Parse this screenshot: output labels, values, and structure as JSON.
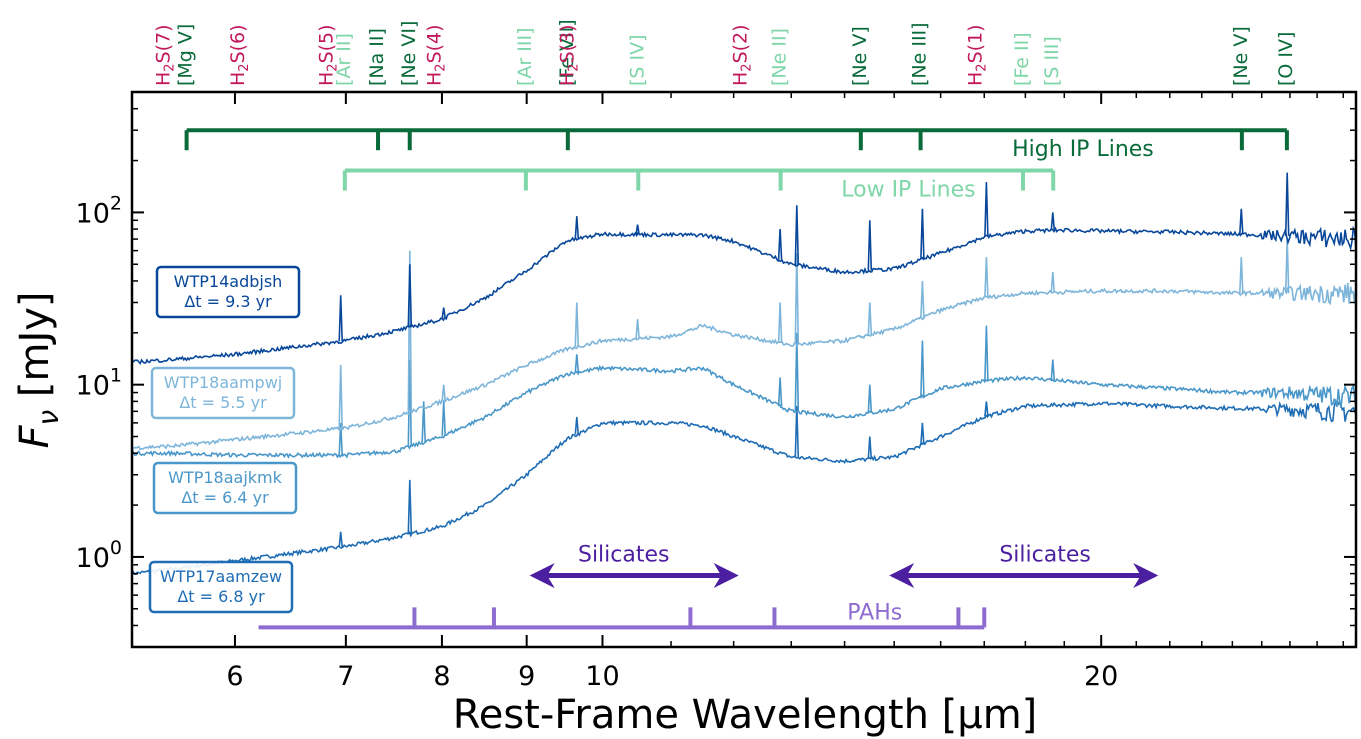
{
  "chart_data": {
    "type": "line",
    "title": "",
    "xlabel": "Rest-Frame Wavelength [μm]",
    "ylabel": "F_ν [mJy]",
    "xscale": "log",
    "yscale": "log",
    "xlim": [
      5.2,
      28.5
    ],
    "ylim": [
      0.3,
      500
    ],
    "x_ticks": [
      6,
      7,
      8,
      9,
      10,
      20
    ],
    "y_ticks": [
      {
        "value": 1,
        "base": "10",
        "exp": "0"
      },
      {
        "value": 10,
        "base": "10",
        "exp": "1"
      },
      {
        "value": 100,
        "base": "10",
        "exp": "2"
      }
    ],
    "series": [
      {
        "name": "WTP14adbjsh",
        "label_line2": "Δt = 9.3 yr",
        "color": "#08479a",
        "points": [
          [
            5.2,
            13.5
          ],
          [
            5.5,
            14.0
          ],
          [
            6.0,
            15.0
          ],
          [
            6.5,
            16.5
          ],
          [
            7.0,
            18.0
          ],
          [
            7.5,
            20.5
          ],
          [
            8.0,
            24.0
          ],
          [
            8.5,
            32.0
          ],
          [
            9.0,
            46.0
          ],
          [
            9.5,
            68.0
          ],
          [
            10.0,
            75.0
          ],
          [
            11.0,
            74.0
          ],
          [
            11.5,
            74.0
          ],
          [
            12.0,
            68.0
          ],
          [
            13.0,
            50.0
          ],
          [
            14.0,
            45.0
          ],
          [
            15.0,
            47.0
          ],
          [
            16.0,
            58.0
          ],
          [
            17.0,
            72.0
          ],
          [
            18.0,
            78.0
          ],
          [
            19.0,
            79.0
          ],
          [
            20.0,
            78.0
          ],
          [
            22.0,
            77.0
          ],
          [
            24.0,
            75.0
          ],
          [
            26.0,
            73.0
          ],
          [
            28.5,
            70.0
          ]
        ],
        "peaks": [
          [
            6.95,
            33
          ],
          [
            7.65,
            50
          ],
          [
            8.02,
            28
          ],
          [
            9.65,
            95
          ],
          [
            10.5,
            85
          ],
          [
            12.8,
            80
          ],
          [
            13.1,
            110
          ],
          [
            14.5,
            90
          ],
          [
            15.6,
            105
          ],
          [
            17.05,
            150
          ],
          [
            18.7,
            100
          ],
          [
            24.3,
            105
          ],
          [
            25.9,
            170
          ]
        ]
      },
      {
        "name": "WTP18aampwj",
        "label_line2": "Δt = 5.5 yr",
        "color": "#7eb5da",
        "points": [
          [
            5.2,
            4.3
          ],
          [
            5.5,
            4.4
          ],
          [
            6.0,
            4.8
          ],
          [
            6.5,
            5.2
          ],
          [
            7.0,
            5.6
          ],
          [
            7.5,
            6.5
          ],
          [
            8.0,
            8.0
          ],
          [
            8.5,
            10.0
          ],
          [
            9.0,
            13.0
          ],
          [
            9.5,
            16.0
          ],
          [
            10.0,
            18.0
          ],
          [
            11.0,
            19.0
          ],
          [
            11.5,
            22.0
          ],
          [
            12.0,
            19.5
          ],
          [
            13.0,
            17.0
          ],
          [
            14.0,
            18.0
          ],
          [
            15.0,
            21.0
          ],
          [
            16.0,
            27.0
          ],
          [
            17.0,
            32.0
          ],
          [
            18.0,
            34.0
          ],
          [
            20.0,
            35.0
          ],
          [
            22.0,
            35.0
          ],
          [
            24.0,
            34.0
          ],
          [
            26.0,
            34.0
          ],
          [
            28.5,
            34.0
          ]
        ],
        "peaks": [
          [
            6.95,
            13
          ],
          [
            7.65,
            60
          ],
          [
            8.02,
            10
          ],
          [
            9.65,
            30
          ],
          [
            10.5,
            24
          ],
          [
            12.8,
            30
          ],
          [
            13.1,
            58
          ],
          [
            14.5,
            30
          ],
          [
            15.6,
            40
          ],
          [
            17.05,
            55
          ],
          [
            18.7,
            45
          ],
          [
            24.3,
            55
          ],
          [
            25.9,
            70
          ]
        ]
      },
      {
        "name": "WTP18aajkmk",
        "label_line2": "Δt = 6.4 yr",
        "color": "#4a97c9",
        "points": [
          [
            5.2,
            4.0
          ],
          [
            5.5,
            4.0
          ],
          [
            6.0,
            3.9
          ],
          [
            6.5,
            3.9
          ],
          [
            7.0,
            3.9
          ],
          [
            7.5,
            4.1
          ],
          [
            8.0,
            5.0
          ],
          [
            8.5,
            6.5
          ],
          [
            9.0,
            9.0
          ],
          [
            9.5,
            11.5
          ],
          [
            10.0,
            12.5
          ],
          [
            11.0,
            12.0
          ],
          [
            11.5,
            12.5
          ],
          [
            12.0,
            10.0
          ],
          [
            13.0,
            7.0
          ],
          [
            14.0,
            6.5
          ],
          [
            15.0,
            7.2
          ],
          [
            16.0,
            9.5
          ],
          [
            17.0,
            10.5
          ],
          [
            18.0,
            11.0
          ],
          [
            20.0,
            10.0
          ],
          [
            22.0,
            9.5
          ],
          [
            24.0,
            9.0
          ],
          [
            26.0,
            9.0
          ],
          [
            28.5,
            8.5
          ]
        ],
        "peaks": [
          [
            6.95,
            6
          ],
          [
            7.65,
            14
          ],
          [
            7.8,
            8
          ],
          [
            8.02,
            8
          ],
          [
            9.65,
            15
          ],
          [
            12.8,
            11
          ],
          [
            13.1,
            20
          ],
          [
            14.5,
            10
          ],
          [
            15.6,
            18
          ],
          [
            17.05,
            22
          ],
          [
            18.7,
            14
          ]
        ]
      },
      {
        "name": "WTP17aamzew",
        "label_line2": "Δt = 6.8 yr",
        "color": "#1f6db5",
        "points": [
          [
            5.2,
            0.8
          ],
          [
            5.5,
            0.85
          ],
          [
            6.0,
            0.95
          ],
          [
            6.5,
            1.05
          ],
          [
            7.0,
            1.15
          ],
          [
            7.5,
            1.3
          ],
          [
            8.0,
            1.5
          ],
          [
            8.5,
            2.0
          ],
          [
            9.0,
            3.0
          ],
          [
            9.5,
            4.8
          ],
          [
            10.0,
            6.0
          ],
          [
            11.0,
            6.0
          ],
          [
            11.5,
            5.8
          ],
          [
            12.0,
            5.0
          ],
          [
            13.0,
            3.8
          ],
          [
            14.0,
            3.6
          ],
          [
            15.0,
            3.8
          ],
          [
            16.0,
            5.0
          ],
          [
            17.0,
            6.5
          ],
          [
            18.0,
            7.5
          ],
          [
            20.0,
            7.8
          ],
          [
            22.0,
            7.5
          ],
          [
            24.0,
            7.3
          ],
          [
            26.0,
            7.2
          ],
          [
            28.5,
            7.0
          ]
        ],
        "peaks": [
          [
            6.95,
            1.4
          ],
          [
            7.65,
            2.8
          ],
          [
            9.65,
            6.5
          ],
          [
            13.1,
            7.5
          ],
          [
            14.5,
            5
          ],
          [
            15.6,
            6
          ],
          [
            17.05,
            8
          ]
        ]
      }
    ],
    "line_ids": [
      {
        "text_main": "H",
        "sub": "2",
        "text_rest": "S(7)",
        "x": 5.51,
        "color": "#c2185b",
        "row": 0
      },
      {
        "text": "[Mg V]",
        "x": 5.61,
        "color": "#0a6b3a",
        "row": 1
      },
      {
        "text_main": "H",
        "sub": "2",
        "text_rest": "S(6)",
        "x": 6.11,
        "color": "#c2185b",
        "row": 0
      },
      {
        "text_main": "H",
        "sub": "2",
        "text_rest": "S(5)",
        "x": 6.91,
        "color": "#c2185b",
        "row": 0
      },
      {
        "text": "[Ar II]",
        "x": 6.99,
        "color": "#7fd6a8",
        "row": 1
      },
      {
        "text": "[Na II]",
        "x": 7.32,
        "color": "#0a6b3a",
        "row": 1
      },
      {
        "text": "[Ne VI]",
        "x": 7.65,
        "color": "#0a6b3a",
        "row": 1
      },
      {
        "text_main": "H",
        "sub": "2",
        "text_rest": "S(4)",
        "x": 8.03,
        "color": "#c2185b",
        "row": 0
      },
      {
        "text": "[Ar III]",
        "x": 8.99,
        "color": "#7fd6a8",
        "row": 1
      },
      {
        "text": "[Fe VII]",
        "x": 9.53,
        "color": "#0a6b3a",
        "row": 1
      },
      {
        "text_main": "H",
        "sub": "2",
        "text_rest": "S(3)",
        "x": 9.66,
        "color": "#c2185b",
        "row": 0
      },
      {
        "text": "[S IV]",
        "x": 10.51,
        "color": "#7fd6a8",
        "row": 1
      },
      {
        "text_main": "H",
        "sub": "2",
        "text_rest": "S(2)",
        "x": 12.28,
        "color": "#c2185b",
        "row": 0
      },
      {
        "text": "[Ne II]",
        "x": 12.81,
        "color": "#7fd6a8",
        "row": 1
      },
      {
        "text": "[Ne V]",
        "x": 14.32,
        "color": "#0a6b3a",
        "row": 1
      },
      {
        "text": "[Ne III]",
        "x": 15.56,
        "color": "#0a6b3a",
        "row": 1
      },
      {
        "text_main": "H",
        "sub": "2",
        "text_rest": "S(1)",
        "x": 17.03,
        "color": "#c2185b",
        "row": 0
      },
      {
        "text": "[Fe II]",
        "x": 17.94,
        "color": "#7fd6a8",
        "row": 1
      },
      {
        "text": "[S III]",
        "x": 18.71,
        "color": "#7fd6a8",
        "row": 1
      },
      {
        "text": "[Ne V]",
        "x": 24.32,
        "color": "#0a6b3a",
        "row": 1
      },
      {
        "text": "[O IV]",
        "x": 25.89,
        "color": "#0a6b3a",
        "row": 1
      }
    ],
    "brackets": [
      {
        "label": "High IP Lines",
        "color": "#0a6b3a",
        "y": 300,
        "x_range": [
          5.61,
          25.89
        ],
        "ticks": [
          5.61,
          7.32,
          7.65,
          9.53,
          14.32,
          15.56,
          24.32,
          25.89
        ],
        "label_x": 19.5,
        "direction": "down"
      },
      {
        "label": "Low IP Lines",
        "color": "#7fd6a8",
        "y": 175,
        "x_range": [
          6.99,
          18.71
        ],
        "ticks": [
          6.99,
          8.99,
          10.51,
          12.81,
          17.94,
          18.71
        ],
        "label_x": 15.3,
        "direction": "down"
      },
      {
        "label": "PAHs",
        "color": "#8e6bd1",
        "y": 0.39,
        "x_range": [
          6.2,
          17.0
        ],
        "ticks": [
          7.7,
          8.6,
          11.3,
          12.7,
          16.4,
          17.0
        ],
        "label_x": 14.6,
        "direction": "up"
      }
    ],
    "arrows": [
      {
        "label": "Silicates",
        "color": "#4b1fa0",
        "y": 0.78,
        "x_range": [
          9.1,
          12.0
        ],
        "label_x": 10.3
      },
      {
        "label": "Silicates",
        "color": "#4b1fa0",
        "y": 0.78,
        "x_range": [
          15.0,
          21.5
        ],
        "label_x": 18.5
      }
    ]
  }
}
